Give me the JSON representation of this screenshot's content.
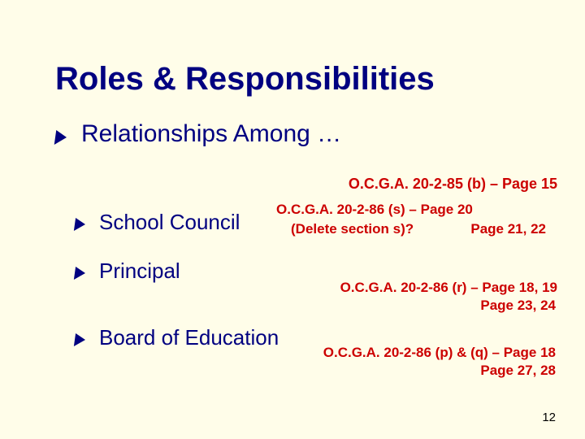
{
  "title": "Roles & Responsibilities",
  "heading1": "Relationships Among …",
  "items": {
    "school": "School Council",
    "principal": "Principal",
    "board": "Board of Education"
  },
  "refs": {
    "r1": "O.C.G.A. 20-2-85 (b) – Page 15",
    "r2a": "O.C.G.A. 20-2-86 (s) – Page 20",
    "r2b": "(Delete section s)?",
    "r2c": "Page 21, 22",
    "r3a": "O.C.G.A. 20-2-86 (r) – Page 18, 19",
    "r3b": "Page 23, 24",
    "r4a": "O.C.G.A. 20-2-86 (p) & (q) – Page 18",
    "r4b": "Page 27, 28"
  },
  "page_number": "12",
  "colors": {
    "background": "#fffde9",
    "primary_text": "#000080",
    "ref_text": "#cc0000"
  }
}
